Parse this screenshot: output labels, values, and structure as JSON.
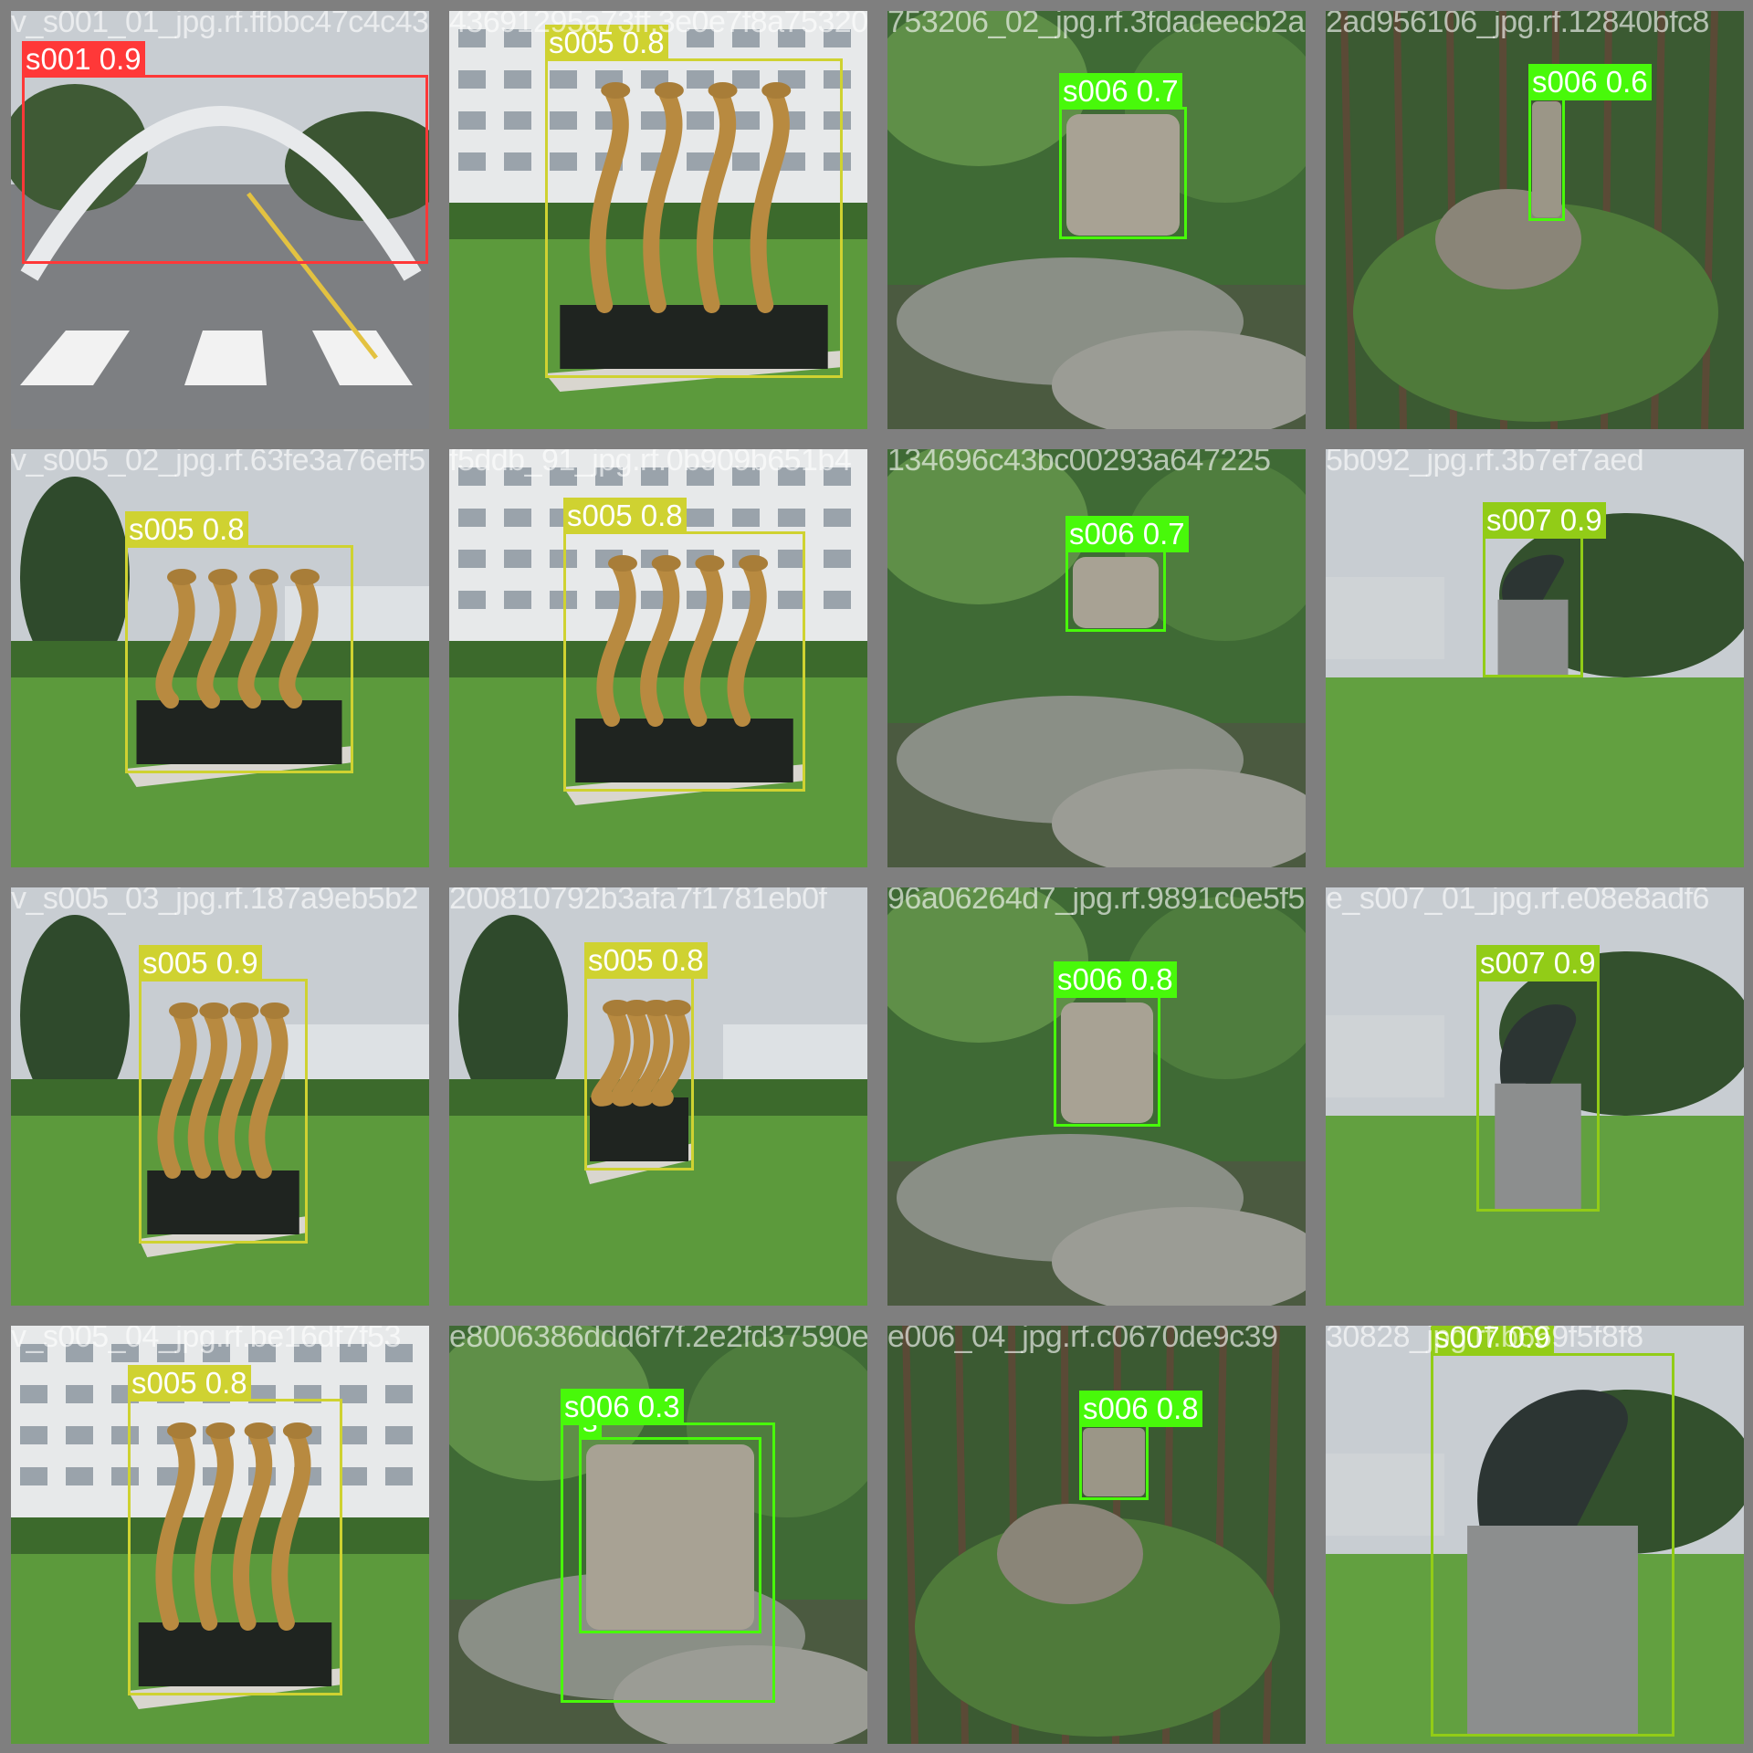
{
  "mosaic": {
    "tiles": [
      {
        "file": "v_s001_01_jpg.rf.ffbbc47c4c4369052ba79",
        "scene": "arch",
        "detections": [
          {
            "label": "s001 0.9",
            "cls": "s001"
          }
        ]
      },
      {
        "file": "43691295a73ff.3e0e7f8a753206_02_jpg",
        "scene": "tree-sculpture",
        "detections": [
          {
            "label": "s005 0.8",
            "cls": "s005"
          }
        ]
      },
      {
        "file": "753206_02_jpg.rf.3fdadeecb2ad9",
        "scene": "rock-monument",
        "detections": [
          {
            "label": "s006 0.7",
            "cls": "s006"
          }
        ]
      },
      {
        "file": "2ad956106_jpg.rf.12840bfc8",
        "scene": "forest-stone",
        "detections": [
          {
            "label": "s006 0.6",
            "cls": "s006"
          }
        ]
      },
      {
        "file": "v_s005_02_jpg.rf.63fe3a76eff5",
        "scene": "tree-sculpture",
        "detections": [
          {
            "label": "s005 0.8",
            "cls": "s005"
          }
        ]
      },
      {
        "file": "f5ddb_91_jpg.rf.0b909b651b4",
        "scene": "tree-sculpture",
        "detections": [
          {
            "label": "s005 0.8",
            "cls": "s005"
          }
        ]
      },
      {
        "file": "134696c43bc00293a647225",
        "scene": "rock-pile",
        "detections": [
          {
            "label": "s006 0.7",
            "cls": "s006"
          }
        ]
      },
      {
        "file": "5b092_jpg.rf.3b7ef7aed",
        "scene": "bronze-monument",
        "detections": [
          {
            "label": "s007 0.9",
            "cls": "s007"
          }
        ]
      },
      {
        "file": "v_s005_03_jpg.rf.187a9eb5b2",
        "scene": "tree-sculpture",
        "detections": [
          {
            "label": "s005 0.9",
            "cls": "s005"
          }
        ]
      },
      {
        "file": "200810792b3afa7f1781eb0f",
        "scene": "tree-sculpture",
        "detections": [
          {
            "label": "s005 0.8",
            "cls": "s005"
          }
        ]
      },
      {
        "file": "96a06264d7_jpg.rf.9891c0e5f5",
        "scene": "rock-monument",
        "detections": [
          {
            "label": "s006 0.8",
            "cls": "s006"
          }
        ]
      },
      {
        "file": "e_s007_01_jpg.rf.e08e8adf6",
        "scene": "bronze-monument",
        "detections": [
          {
            "label": "s007 0.9",
            "cls": "s007"
          }
        ]
      },
      {
        "file": "v_s005_04_jpg.rf.be16df7f53",
        "scene": "tree-sculpture",
        "detections": [
          {
            "label": "s005 0.8",
            "cls": "s005"
          }
        ]
      },
      {
        "file": "e8006386ddd6f7f.2e2fd37590e",
        "scene": "carved-stone",
        "detections": [
          {
            "label": "s",
            "cls": "s006"
          },
          {
            "label": "s006 0.3",
            "cls": "s006"
          }
        ]
      },
      {
        "file": "e006_04_jpg.rf.c0670de9c39",
        "scene": "forest-stone",
        "detections": [
          {
            "label": "s006 0.8",
            "cls": "s006"
          }
        ]
      },
      {
        "file": "30828_jpg.rf.b669f5f8f8",
        "scene": "bronze-monument",
        "detections": [
          {
            "label": "s007 0.9",
            "cls": "s007"
          }
        ]
      }
    ]
  },
  "classes": {
    "s001": "#ff3838",
    "s005": "#cfd231",
    "s006": "#48f90a",
    "s007": "#92cc17"
  }
}
